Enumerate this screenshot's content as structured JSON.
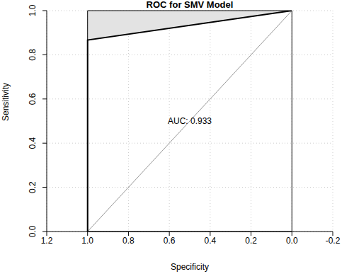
{
  "chart_data": {
    "type": "line",
    "title": "ROC for SMV Model",
    "x_label": "Specificity",
    "y_label": "Sensitivity",
    "x": [
      1,
      1,
      0
    ],
    "values": [
      0,
      0.867,
      1
    ],
    "color": "#000000",
    "xlim": [
      1.2,
      -0.2
    ],
    "xticks": [
      1.2,
      {
        "value": 1,
        "label": "1.0"
      },
      0.8,
      0.6,
      0.4,
      0.2,
      {
        "value": 0,
        "label": "0.0"
      },
      -0.2
    ],
    "ylim": [
      0,
      1
    ],
    "yticks": [
      {
        "value": 0,
        "label": "0.0"
      },
      0.2,
      0.4,
      0.6,
      0.8,
      {
        "value": 1,
        "label": "1.0"
      }
    ],
    "grid": true,
    "reference_line": {
      "x": [
        1,
        0
      ],
      "y": [
        0,
        1
      ]
    },
    "annotations": [
      "AUC: 0.933"
    ]
  }
}
